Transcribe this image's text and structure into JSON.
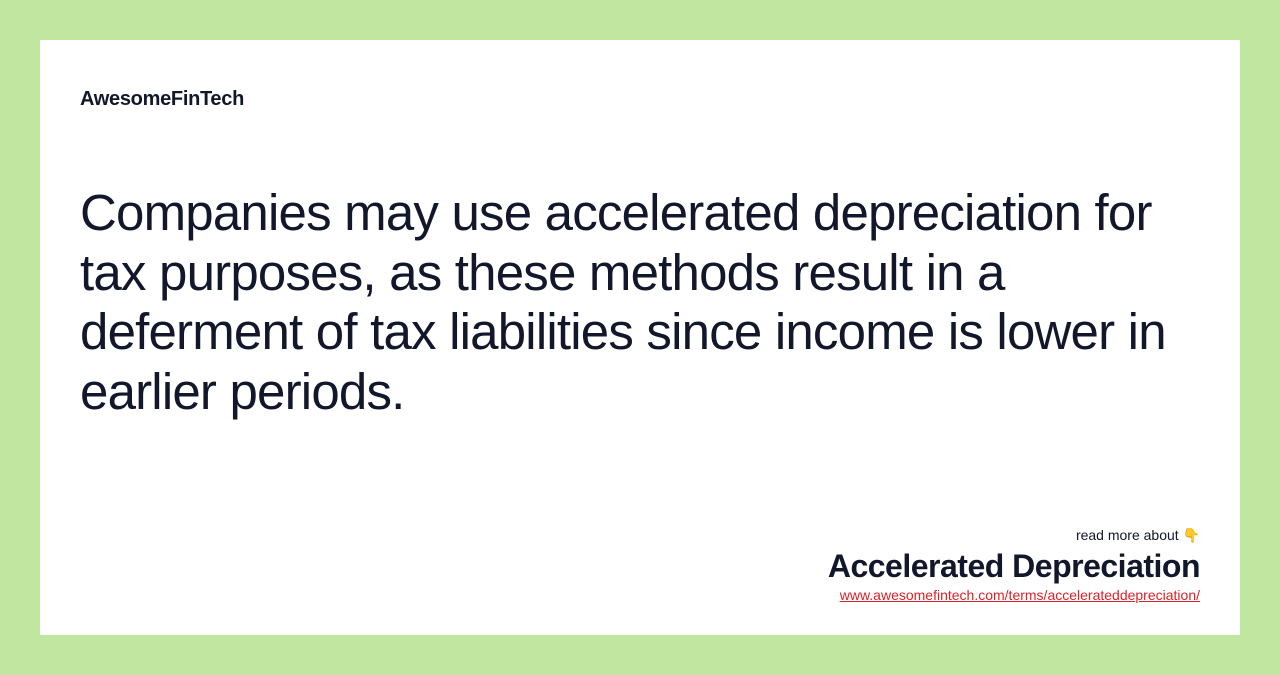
{
  "colors": {
    "page_background": "#c0e6a0",
    "card_background": "#ffffff",
    "text_primary": "#12172b",
    "link_color": "#d8232a"
  },
  "typography": {
    "brand_fontsize": 20,
    "brand_fontweight": 800,
    "main_fontsize": 51,
    "main_fontweight": 400,
    "term_title_fontsize": 32,
    "term_title_fontweight": 800,
    "small_fontsize": 14
  },
  "brand": {
    "name": "AwesomeFinTech"
  },
  "content": {
    "main_text": "Companies may use accelerated depreciation for tax purposes, as these methods result in a deferment of tax liabilities since income is lower in earlier periods."
  },
  "footer": {
    "read_more_label": "read more about 👇",
    "term_title": "Accelerated Depreciation",
    "term_url": "www.awesomefintech.com/terms/accelerateddepreciation/"
  }
}
